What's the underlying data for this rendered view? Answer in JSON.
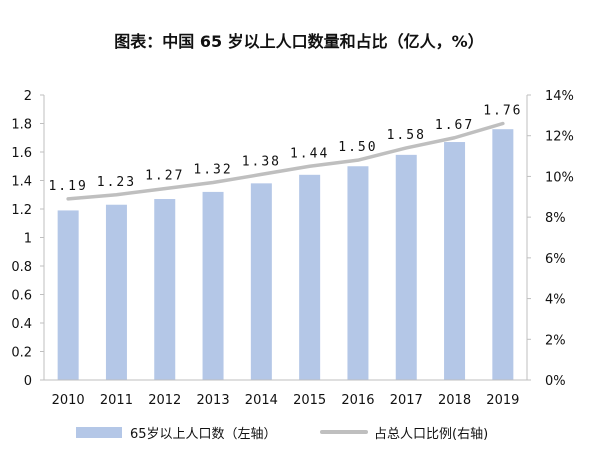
{
  "chart_data": {
    "type": "bar",
    "title": "图表：中国 65 岁以上人口数量和占比（亿人，%）",
    "categories": [
      "2010",
      "2011",
      "2012",
      "2013",
      "2014",
      "2015",
      "2016",
      "2017",
      "2018",
      "2019"
    ],
    "series": [
      {
        "name": "65岁以上人口数（左轴）",
        "type": "bar",
        "axis": "left",
        "values": [
          1.19,
          1.23,
          1.27,
          1.32,
          1.38,
          1.44,
          1.5,
          1.58,
          1.67,
          1.76
        ],
        "labels": [
          "1.19",
          "1.23",
          "1.27",
          "1.32",
          "1.38",
          "1.44",
          "1.50",
          "1.58",
          "1.67",
          "1.76"
        ],
        "color": "#B4C7E7"
      },
      {
        "name": "占总人口比例(右轴)",
        "type": "line",
        "axis": "right",
        "values": [
          8.9,
          9.1,
          9.4,
          9.7,
          10.1,
          10.5,
          10.8,
          11.4,
          11.9,
          12.6
        ],
        "color": "#BFBFBF"
      }
    ],
    "left_axis": {
      "ylim": [
        0,
        2
      ],
      "ticks": [
        "0",
        "0.2",
        "0.4",
        "0.6",
        "0.8",
        "1",
        "1.2",
        "1.4",
        "1.6",
        "1.8",
        "2"
      ]
    },
    "right_axis": {
      "ylim": [
        0,
        14
      ],
      "ticks": [
        "0%",
        "2%",
        "4%",
        "6%",
        "8%",
        "10%",
        "12%",
        "14%"
      ]
    },
    "grid": false,
    "legend_position": "bottom"
  }
}
